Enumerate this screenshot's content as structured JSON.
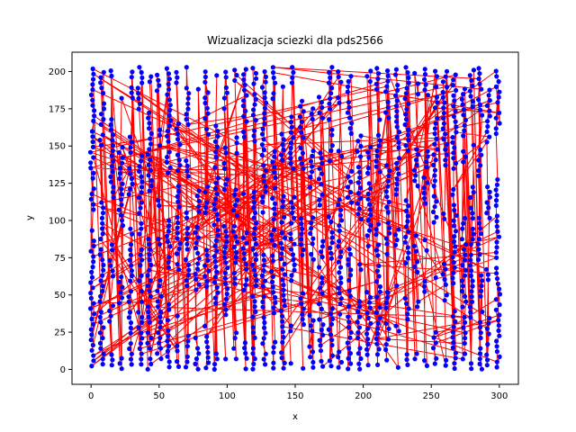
{
  "chart_data": {
    "type": "scatter",
    "title": "Wizualizacja sciezki dla pds2566",
    "xlabel": "x",
    "ylabel": "y",
    "xlim": [
      -14,
      314
    ],
    "ylim": [
      -10,
      213
    ],
    "xticks": [
      0,
      50,
      100,
      150,
      200,
      250,
      300
    ],
    "yticks": [
      0,
      25,
      50,
      75,
      100,
      125,
      150,
      175,
      200
    ],
    "grid": false,
    "legend": "none",
    "point_color": "#0000ff",
    "line_color": "#ff0000",
    "column_x_values": [
      1,
      8,
      15,
      22,
      29,
      36,
      43,
      50,
      57,
      64,
      71,
      78,
      85,
      92,
      99,
      106,
      113,
      120,
      127,
      134,
      141,
      148,
      155,
      162,
      169,
      176,
      183,
      190,
      197,
      204,
      211,
      218,
      225,
      232,
      239,
      246,
      253,
      260,
      267,
      274,
      280,
      286,
      292,
      299
    ],
    "y_range": [
      0,
      203
    ],
    "path_note_points": 2566
  }
}
